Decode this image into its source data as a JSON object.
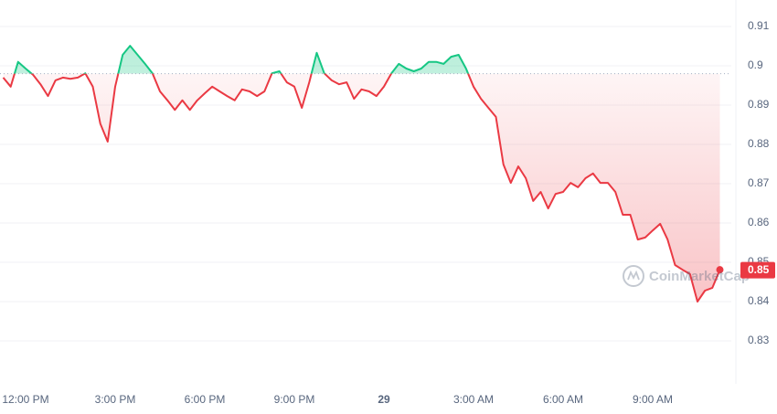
{
  "chart_data": {
    "type": "line",
    "categories": [
      null,
      null,
      null,
      "12:00 PM",
      null,
      null,
      null,
      null,
      null,
      null,
      null,
      null,
      null,
      null,
      null,
      "3:00 PM",
      null,
      null,
      null,
      null,
      null,
      null,
      null,
      null,
      null,
      null,
      null,
      "6:00 PM",
      null,
      null,
      null,
      null,
      null,
      null,
      null,
      null,
      null,
      null,
      null,
      "9:00 PM",
      null,
      null,
      null,
      null,
      null,
      null,
      null,
      null,
      null,
      null,
      null,
      "29",
      null,
      null,
      null,
      null,
      null,
      null,
      null,
      null,
      null,
      null,
      null,
      "3:00 AM",
      null,
      null,
      null,
      null,
      null,
      null,
      null,
      null,
      null,
      null,
      null,
      "6:00 AM",
      null,
      null,
      null,
      null,
      null,
      null,
      null,
      null,
      null,
      null,
      null,
      "9:00 AM",
      null,
      null,
      null,
      null,
      null,
      null,
      null,
      null,
      null
    ],
    "values": [
      0.897,
      0.8947,
      0.901,
      0.8993,
      0.8977,
      0.8953,
      0.8923,
      0.8963,
      0.897,
      0.8967,
      0.897,
      0.8981,
      0.8947,
      0.8853,
      0.8807,
      0.8947,
      0.9028,
      0.9051,
      0.9028,
      0.9005,
      0.8981,
      0.8935,
      0.8912,
      0.8888,
      0.8912,
      0.8888,
      0.8912,
      0.893,
      0.8947,
      0.8935,
      0.8923,
      0.8912,
      0.894,
      0.8935,
      0.8923,
      0.8935,
      0.8981,
      0.8986,
      0.8958,
      0.8947,
      0.8893,
      0.8958,
      0.9033,
      0.8981,
      0.8963,
      0.8953,
      0.8958,
      0.8916,
      0.894,
      0.8935,
      0.8923,
      0.8947,
      0.8981,
      0.9005,
      0.8993,
      0.8986,
      0.8993,
      0.901,
      0.901,
      0.9005,
      0.9023,
      0.9028,
      0.8993,
      0.8947,
      0.8916,
      0.8893,
      0.887,
      0.8749,
      0.8702,
      0.8744,
      0.8714,
      0.8656,
      0.8679,
      0.8637,
      0.8674,
      0.8679,
      0.8702,
      0.8691,
      0.8714,
      0.8726,
      0.8702,
      0.8702,
      0.8679,
      0.8621,
      0.8621,
      0.8558,
      0.8563,
      0.8581,
      0.8598,
      0.8558,
      0.8493,
      0.8481,
      0.847,
      0.84,
      0.8428,
      0.8435,
      0.8481
    ],
    "reference": 0.898,
    "price_label": {
      "value": 0.848,
      "label": "0.85"
    },
    "up_color": "#16c784",
    "down_color": "#ea3943",
    "ylim": [
      0.82,
      0.915
    ],
    "yticks": [
      0.83,
      0.84,
      0.85,
      0.86,
      0.87,
      0.88,
      0.89,
      0.9,
      0.91
    ],
    "grid": true,
    "watermark": "CoinMarketCap"
  }
}
